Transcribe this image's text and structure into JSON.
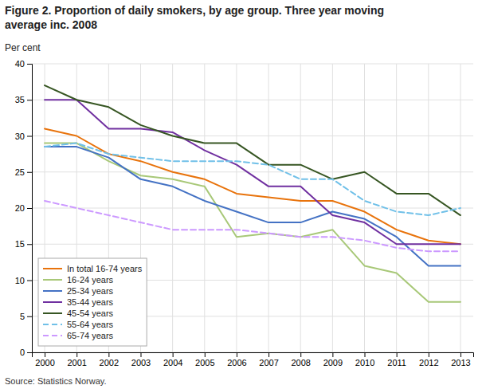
{
  "chart_data": {
    "type": "line",
    "title": "Figure 2. Proportion of daily smokers, by age group. Three year moving",
    "subtitle": "average inc. 2008",
    "ylabel": "Per cent",
    "annotations": [
      "Source: Statistics Norway."
    ],
    "x": [
      2000,
      2001,
      2002,
      2003,
      2004,
      2005,
      2006,
      2007,
      2008,
      2009,
      2010,
      2011,
      2012,
      2013
    ],
    "series": [
      {
        "name": "In total 16-74 years",
        "color": "#E8730C",
        "line_style": "solid",
        "values": [
          31.0,
          30.0,
          27.5,
          26.5,
          25.0,
          24.0,
          22.0,
          21.5,
          21.0,
          21.0,
          19.5,
          17.0,
          15.5,
          15.0
        ]
      },
      {
        "name": "16-24 years",
        "color": "#A8C878",
        "line_style": "solid",
        "values": [
          29.0,
          29.0,
          26.5,
          24.5,
          24.0,
          23.0,
          16.0,
          16.5,
          16.0,
          17.0,
          12.0,
          11.0,
          7.0,
          7.0
        ]
      },
      {
        "name": "25-34 years",
        "color": "#4472C4",
        "line_style": "solid",
        "values": [
          28.5,
          28.5,
          27.0,
          24.0,
          23.0,
          21.0,
          19.5,
          18.0,
          18.0,
          19.5,
          18.5,
          16.0,
          12.0,
          12.0
        ]
      },
      {
        "name": "35-44 years",
        "color": "#7030A0",
        "line_style": "solid",
        "values": [
          35.0,
          35.0,
          31.0,
          31.0,
          30.5,
          28.0,
          26.0,
          23.0,
          23.0,
          19.0,
          18.0,
          15.0,
          15.0,
          15.0
        ]
      },
      {
        "name": "45-54 years",
        "color": "#375623",
        "line_style": "solid",
        "values": [
          37.0,
          35.0,
          34.0,
          31.5,
          30.0,
          29.0,
          29.0,
          26.0,
          26.0,
          24.0,
          25.0,
          22.0,
          22.0,
          19.0
        ]
      },
      {
        "name": "55-64 years",
        "color": "#70C0E8",
        "line_style": "dashed",
        "values": [
          28.5,
          29.0,
          27.5,
          27.0,
          26.5,
          26.5,
          26.5,
          26.0,
          24.0,
          24.0,
          21.0,
          19.5,
          19.0,
          20.0
        ]
      },
      {
        "name": "65-74 years",
        "color": "#CC99FF",
        "line_style": "dashed",
        "values": [
          21.0,
          20.0,
          19.0,
          18.0,
          17.0,
          17.0,
          17.0,
          16.5,
          16.0,
          16.0,
          15.5,
          14.5,
          14.0,
          14.0
        ]
      }
    ],
    "xlim": [
      1999.6,
      2013.4
    ],
    "xticks": [
      2000,
      2001,
      2002,
      2003,
      2004,
      2005,
      2006,
      2007,
      2008,
      2009,
      2010,
      2011,
      2012,
      2013
    ],
    "ylim": [
      0,
      40
    ],
    "yticks": [
      0,
      5,
      10,
      15,
      20,
      25,
      30,
      35,
      40
    ],
    "grid": true,
    "legend": "lower left"
  }
}
